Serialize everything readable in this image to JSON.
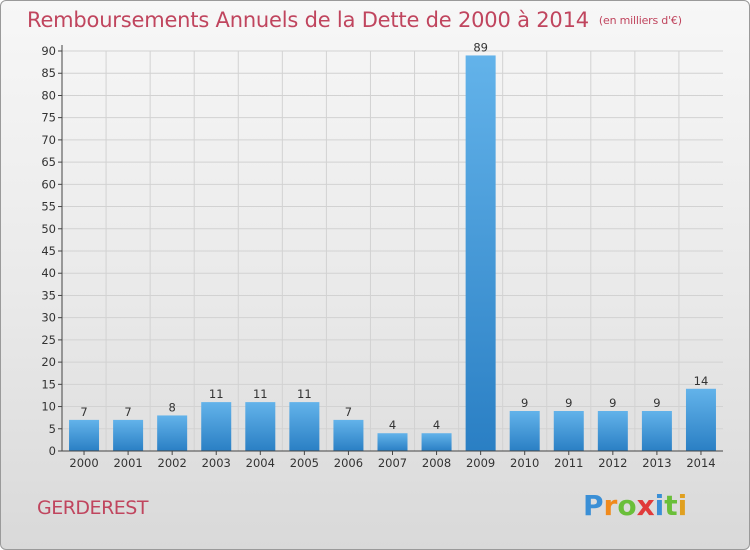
{
  "title": "Remboursements Annuels de la Dette de 2000 à 2014",
  "unit_note": "(en milliers d'€)",
  "commune": "GERDEREST",
  "brand": {
    "letters": [
      "P",
      "r",
      "o",
      "x",
      "i",
      "t",
      "i"
    ],
    "colors": [
      "#3a8fd6",
      "#f08a1c",
      "#6abf3a",
      "#e03a3a",
      "#3a8fd6",
      "#6abf3a",
      "#e0a020"
    ]
  },
  "colors": {
    "bar_top": "#63b3ea",
    "bar_bottom": "#2a7fc4",
    "title": "#c0455e",
    "grid": "#d2d2d2"
  },
  "chart_data": {
    "type": "bar",
    "categories": [
      "2000",
      "2001",
      "2002",
      "2003",
      "2004",
      "2005",
      "2006",
      "2007",
      "2008",
      "2009",
      "2010",
      "2011",
      "2012",
      "2013",
      "2014"
    ],
    "values": [
      7,
      7,
      8,
      11,
      11,
      11,
      7,
      4,
      4,
      89,
      9,
      9,
      9,
      9,
      14
    ],
    "ylim": [
      0,
      90
    ],
    "yticks": [
      0,
      5,
      10,
      15,
      20,
      25,
      30,
      35,
      40,
      45,
      50,
      55,
      60,
      65,
      70,
      75,
      80,
      85,
      90
    ],
    "grid": true
  }
}
